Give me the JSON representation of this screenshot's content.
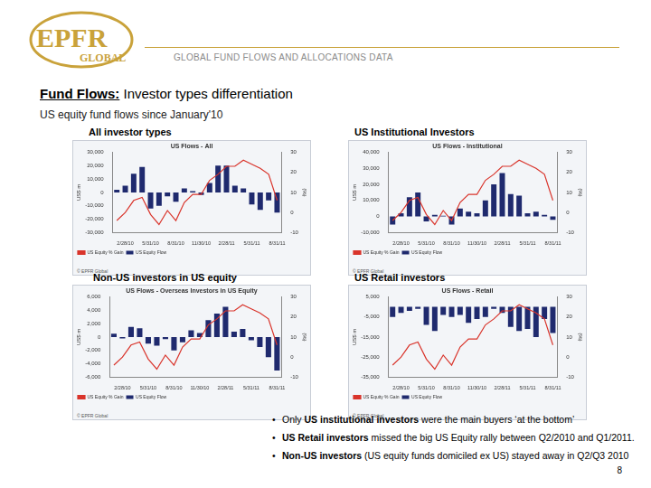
{
  "header": {
    "logo_main": "EPFR",
    "logo_sub": "GLOBAL",
    "tagline": "GLOBAL FUND FLOWS AND ALLOCATIONS DATA"
  },
  "title": {
    "bold": "Fund Flows:",
    "rest": " Investor types differentiation"
  },
  "subtitle": "US equity fund flows since January'10",
  "panel_labels": [
    "All investor types",
    "US Institutional Investors",
    "Non-US investors in US equity",
    "US Retail investors"
  ],
  "chart_source": "© EPFR Global",
  "chart_data": [
    {
      "type": "bar",
      "title": "US Flows - All",
      "ylabel": "US$ m",
      "y2label": "(%)",
      "categories": [
        null,
        "2/28/10",
        null,
        null,
        "5/31/10",
        null,
        null,
        "8/31/10",
        null,
        null,
        "11/30/10",
        null,
        null,
        "2/28/11",
        null,
        null,
        "5/31/11",
        null,
        null,
        "8/31/11"
      ],
      "series": [
        {
          "name": "US Equity Flow",
          "type": "bar",
          "color": "#1f2a6e",
          "values": [
            2000,
            5000,
            14000,
            19000,
            -12000,
            -10000,
            -3000,
            -7000,
            3000,
            1000,
            -2000,
            7000,
            20000,
            20000,
            5000,
            3000,
            -9000,
            -13000,
            -6000,
            -15000
          ]
        },
        {
          "name": "US Equity % Gain",
          "type": "line",
          "color": "#d9342b",
          "axis": "y2",
          "values": [
            -4,
            0,
            6,
            7.5,
            -1,
            -6,
            1,
            -4,
            5,
            9,
            9,
            16,
            19,
            23,
            23,
            26,
            24,
            22,
            19,
            6
          ]
        }
      ],
      "ylim": [
        -30000,
        30000
      ],
      "yticks": [
        {
          "value": -30000,
          "label": "-30,000"
        },
        {
          "value": -20000,
          "label": "-20,000"
        },
        {
          "value": -10000,
          "label": "-10,000"
        },
        0,
        {
          "value": 10000,
          "label": "10,000"
        },
        {
          "value": 20000,
          "label": "20,000"
        },
        {
          "value": 30000,
          "label": "30,000"
        }
      ],
      "y2lim": [
        -10,
        30
      ],
      "y2ticks": [
        -10,
        0,
        10,
        20,
        30
      ],
      "grid": false,
      "legend": "bottom"
    },
    {
      "type": "bar",
      "title": "US Flows - Institutional",
      "ylabel": "US$ m",
      "y2label": "(%)",
      "categories": [
        null,
        "2/28/10",
        null,
        null,
        "5/31/10",
        null,
        null,
        "8/31/10",
        null,
        null,
        "11/30/10",
        null,
        null,
        "2/28/11",
        null,
        null,
        "5/31/11",
        null,
        null,
        "8/31/11"
      ],
      "series": [
        {
          "name": "US Equity Flow",
          "type": "bar",
          "color": "#1f2a6e",
          "values": [
            -5000,
            2000,
            12000,
            15000,
            -3000,
            1000,
            500,
            -5000,
            5000,
            3000,
            2000,
            10000,
            20000,
            27000,
            14000,
            13000,
            2000,
            3000,
            1000,
            -2000
          ]
        },
        {
          "name": "US Equity % Gain",
          "type": "line",
          "color": "#d9342b",
          "axis": "y2",
          "values": [
            -4,
            0,
            6,
            7.5,
            -1,
            -6,
            1,
            -4,
            5,
            9,
            9,
            16,
            19,
            23,
            23,
            26,
            24,
            22,
            19,
            6
          ]
        }
      ],
      "ylim": [
        -10000,
        40000
      ],
      "yticks": [
        {
          "value": -10000,
          "label": "-10,000"
        },
        0,
        {
          "value": 10000,
          "label": "10,000"
        },
        {
          "value": 20000,
          "label": "20,000"
        },
        {
          "value": 30000,
          "label": "30,000"
        },
        {
          "value": 40000,
          "label": "40,000"
        }
      ],
      "y2lim": [
        -10,
        30
      ],
      "y2ticks": [
        -10,
        0,
        10,
        20,
        30
      ],
      "grid": false,
      "legend": "bottom"
    },
    {
      "type": "bar",
      "title": "US Flows - Overseas Investors in US Equity",
      "ylabel": "US$ m",
      "y2label": "(%)",
      "categories": [
        null,
        "2/28/10",
        null,
        null,
        "5/31/10",
        null,
        null,
        "8/31/10",
        null,
        null,
        "11/30/10",
        null,
        null,
        "2/28/11",
        null,
        null,
        "5/31/11",
        null,
        null,
        "8/31/11"
      ],
      "series": [
        {
          "name": "US Equity Flow",
          "type": "bar",
          "color": "#1f2a6e",
          "values": [
            500,
            -200,
            1500,
            1300,
            -1000,
            -1300,
            -300,
            -2000,
            -800,
            1000,
            600,
            2500,
            3500,
            4500,
            800,
            1200,
            -500,
            -1500,
            -3000,
            -5000
          ]
        },
        {
          "name": "US Equity % Gain",
          "type": "line",
          "color": "#d9342b",
          "axis": "y2",
          "values": [
            -4,
            0,
            6,
            7.5,
            -1,
            -6,
            1,
            -4,
            5,
            9,
            9,
            16,
            19,
            23,
            23,
            26,
            24,
            22,
            19,
            6
          ]
        }
      ],
      "ylim": [
        -6000,
        6000
      ],
      "yticks": [
        {
          "value": -6000,
          "label": "-6,000"
        },
        {
          "value": -4000,
          "label": "-4,000"
        },
        {
          "value": -2000,
          "label": "-2,000"
        },
        0,
        {
          "value": 2000,
          "label": "2,000"
        },
        {
          "value": 4000,
          "label": "4,000"
        },
        {
          "value": 6000,
          "label": "6,000"
        }
      ],
      "y2lim": [
        -10,
        30
      ],
      "y2ticks": [
        -10,
        0,
        10,
        20,
        30
      ],
      "grid": false,
      "legend": "bottom"
    },
    {
      "type": "bar",
      "title": "US Flows - Retail",
      "ylabel": "US$ m",
      "y2label": "(%)",
      "categories": [
        null,
        "2/28/10",
        null,
        null,
        "5/31/10",
        null,
        null,
        "8/31/10",
        null,
        null,
        "11/30/10",
        null,
        null,
        "2/28/11",
        null,
        null,
        "5/31/11",
        null,
        null,
        "8/31/11"
      ],
      "series": [
        {
          "name": "US Equity Flow",
          "type": "bar",
          "color": "#1f2a6e",
          "values": [
            -5000,
            -3000,
            -2000,
            -1000,
            -9000,
            -12000,
            -4000,
            -5000,
            -4000,
            -8000,
            -6000,
            -5000,
            -1000,
            -3000,
            -10000,
            -12000,
            -11000,
            -15000,
            -6000,
            -13000
          ]
        },
        {
          "name": "US Equity % Gain",
          "type": "line",
          "color": "#d9342b",
          "axis": "y2",
          "values": [
            -4,
            0,
            6,
            7.5,
            -1,
            -6,
            1,
            -4,
            5,
            9,
            9,
            16,
            19,
            23,
            23,
            26,
            24,
            22,
            19,
            6
          ]
        }
      ],
      "ylim": [
        -35000,
        5000
      ],
      "yticks": [
        {
          "value": -35000,
          "label": "-35,000"
        },
        {
          "value": -25000,
          "label": "-25,000"
        },
        {
          "value": -15000,
          "label": "-15,000"
        },
        {
          "value": -5000,
          "label": "-5,000"
        },
        {
          "value": 5000,
          "label": "5,000"
        }
      ],
      "y2lim": [
        -10,
        30
      ],
      "y2ticks": [
        -10,
        0,
        10,
        20,
        30
      ],
      "grid": false,
      "legend": "bottom"
    }
  ],
  "bullets": [
    [
      "Only ",
      "US institutional investors",
      " were the main buyers ‘at the bottom’"
    ],
    [
      "",
      "US Retail investors",
      " missed the big US Equity rally between Q2/2010 and Q1/2011."
    ],
    [
      "",
      "Non-US investors",
      " (US equity funds domiciled ex US) stayed away in Q2/Q3 2010"
    ]
  ],
  "page_number": "8"
}
